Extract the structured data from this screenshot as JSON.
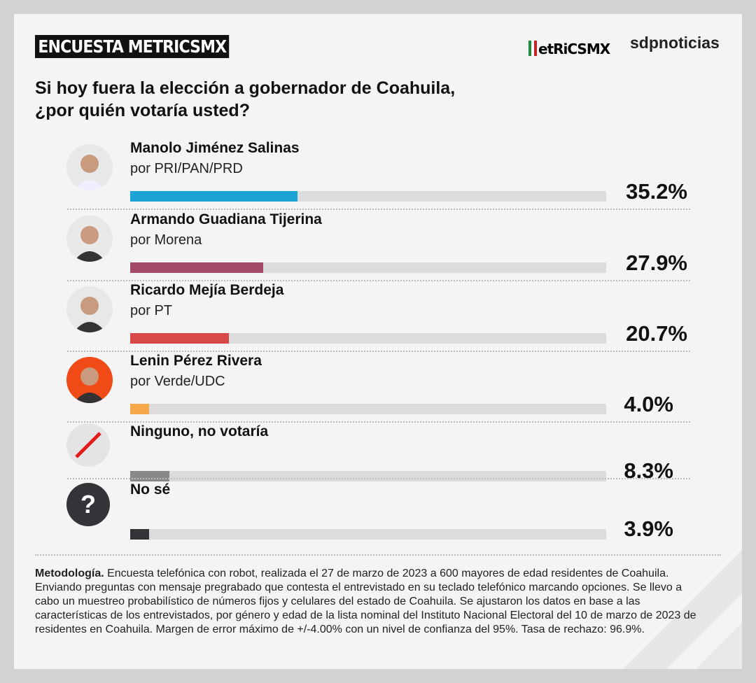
{
  "header": {
    "tag": "ENCUESTA METRICSMX",
    "logo_metrics": "etRiCSMX",
    "logo_sdp": "sdpnoticias"
  },
  "question_line1": "Si hoy fuera la elección a gobernador de Coahuila,",
  "question_line2": "¿por quién votaría usted?",
  "chart_data": {
    "type": "bar",
    "title": "Si hoy fuera la elección a gobernador de Coahuila, ¿por quién votaría usted?",
    "xlim": [
      0,
      100
    ],
    "categories": [
      "Manolo Jiménez Salinas",
      "Armando Guadiana Tijerina",
      "Ricardo Mejía Berdeja",
      "Lenin Pérez Rivera",
      "Ninguno, no votaría",
      "No sé"
    ],
    "subtitles": [
      "por PRI/PAN/PRD",
      "por Morena",
      "por PT",
      "por Verde/UDC",
      "",
      ""
    ],
    "values": [
      35.2,
      27.9,
      20.7,
      4.0,
      8.3,
      3.9
    ],
    "labels": [
      "35.2%",
      "27.9%",
      "20.7%",
      "4.0%",
      "8.3%",
      "3.9%"
    ],
    "colors": [
      "#1aa3d4",
      "#a34a67",
      "#d94848",
      "#f7a94a",
      "#888888",
      "#333338"
    ]
  },
  "icons": {
    "none": "slash-icon",
    "unknown": "question-icon",
    "unknown_glyph": "?"
  },
  "methodology_bold": "Metodología.",
  "methodology": " Encuesta telefónica con robot, realizada el 27 de marzo de 2023 a 600 mayores de edad residentes de Coahuila. Enviando preguntas con mensaje pregrabado que contesta el entrevistado en su teclado telefónico marcando opciones. Se llevo a cabo un muestreo probabilístico de números fijos y celulares del estado de Coahuila. Se ajustaron los datos en base a las características de los entrevistados, por género y edad de la lista nominal del Instituto Nacional Electoral del 10 de marzo de 2023 de residentes en Coahuila. Margen de error máximo de +/-4.00% con un nivel de confianza del 95%. Tasa de rechazo: 96.9%."
}
